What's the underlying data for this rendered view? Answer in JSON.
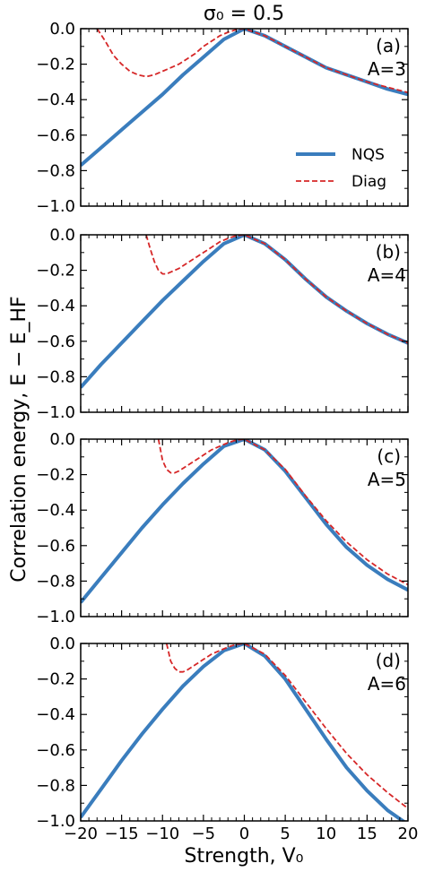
{
  "figure": {
    "title": "σ₀ = 0.5",
    "xlabel": "Strength, V₀",
    "ylabel": "Correlation energy, E − E_HF"
  },
  "chart_data": [
    {
      "type": "line",
      "panel": "(a)",
      "annotation": "A=3",
      "xlim": [
        -20,
        20
      ],
      "ylim": [
        -1.0,
        0.0
      ],
      "series": [
        {
          "name": "NQS",
          "x": [
            -20,
            -17.5,
            -15,
            -12.5,
            -10,
            -7.5,
            -5,
            -2.5,
            0,
            2.5,
            5,
            7.5,
            10,
            12.5,
            15,
            17.5,
            20
          ],
          "values": [
            -0.77,
            -0.67,
            -0.57,
            -0.47,
            -0.37,
            -0.26,
            -0.16,
            -0.06,
            0.0,
            -0.04,
            -0.1,
            -0.16,
            -0.22,
            -0.26,
            -0.3,
            -0.34,
            -0.37
          ]
        },
        {
          "name": "Diag",
          "x": [
            -18,
            -17,
            -16,
            -15,
            -14,
            -13,
            -12,
            -11,
            -10,
            -9,
            -8,
            -7,
            -6,
            -5,
            -4,
            -3,
            -2,
            -1,
            0,
            2.5,
            5,
            7.5,
            10,
            12.5,
            15,
            17.5,
            20
          ],
          "values": [
            0.0,
            -0.07,
            -0.15,
            -0.2,
            -0.24,
            -0.26,
            -0.27,
            -0.26,
            -0.24,
            -0.22,
            -0.2,
            -0.17,
            -0.14,
            -0.1,
            -0.07,
            -0.04,
            -0.02,
            -0.005,
            0.0,
            -0.04,
            -0.1,
            -0.16,
            -0.22,
            -0.26,
            -0.3,
            -0.33,
            -0.36
          ]
        }
      ]
    },
    {
      "type": "line",
      "panel": "(b)",
      "annotation": "A=4",
      "xlim": [
        -20,
        20
      ],
      "ylim": [
        -1.0,
        0.0
      ],
      "series": [
        {
          "name": "NQS",
          "x": [
            -20,
            -17.5,
            -15,
            -12.5,
            -10,
            -7.5,
            -5,
            -2.5,
            0,
            2.5,
            5,
            7.5,
            10,
            12.5,
            15,
            17.5,
            20
          ],
          "values": [
            -0.86,
            -0.73,
            -0.61,
            -0.49,
            -0.37,
            -0.26,
            -0.15,
            -0.05,
            0.0,
            -0.05,
            -0.14,
            -0.25,
            -0.35,
            -0.43,
            -0.5,
            -0.56,
            -0.61
          ]
        },
        {
          "name": "Diag",
          "x": [
            -12,
            -11.5,
            -11,
            -10.5,
            -10,
            -9.5,
            -9,
            -8.5,
            -8,
            -7,
            -6,
            -5,
            -4,
            -3,
            -2,
            -1,
            0,
            2.5,
            5,
            7.5,
            10,
            12.5,
            15,
            17.5,
            20
          ],
          "values": [
            0.0,
            -0.08,
            -0.15,
            -0.2,
            -0.22,
            -0.22,
            -0.21,
            -0.2,
            -0.19,
            -0.16,
            -0.13,
            -0.1,
            -0.07,
            -0.04,
            -0.02,
            -0.005,
            0.0,
            -0.05,
            -0.14,
            -0.25,
            -0.35,
            -0.43,
            -0.5,
            -0.56,
            -0.61
          ]
        }
      ]
    },
    {
      "type": "line",
      "panel": "(c)",
      "annotation": "A=5",
      "xlim": [
        -20,
        20
      ],
      "ylim": [
        -1.0,
        0.0
      ],
      "series": [
        {
          "name": "NQS",
          "x": [
            -20,
            -17.5,
            -15,
            -12.5,
            -10,
            -7.5,
            -5,
            -2.5,
            0,
            2.5,
            5,
            7.5,
            10,
            12.5,
            15,
            17.5,
            20
          ],
          "values": [
            -0.92,
            -0.78,
            -0.64,
            -0.5,
            -0.37,
            -0.25,
            -0.14,
            -0.04,
            0.0,
            -0.06,
            -0.18,
            -0.33,
            -0.48,
            -0.61,
            -0.71,
            -0.79,
            -0.85
          ]
        },
        {
          "name": "Diag",
          "x": [
            -10.5,
            -10,
            -9.5,
            -9,
            -8.5,
            -8,
            -7,
            -6,
            -5,
            -4,
            -3,
            -2,
            -1,
            0,
            2.5,
            5,
            7.5,
            10,
            12.5,
            15,
            17.5,
            20
          ],
          "values": [
            0.0,
            -0.12,
            -0.17,
            -0.19,
            -0.19,
            -0.18,
            -0.15,
            -0.12,
            -0.09,
            -0.06,
            -0.04,
            -0.02,
            -0.005,
            0.0,
            -0.06,
            -0.17,
            -0.32,
            -0.46,
            -0.58,
            -0.68,
            -0.76,
            -0.82
          ]
        }
      ]
    },
    {
      "type": "line",
      "panel": "(d)",
      "annotation": "A=6",
      "xlim": [
        -20,
        20
      ],
      "ylim": [
        -1.0,
        0.0
      ],
      "series": [
        {
          "name": "NQS",
          "x": [
            -20,
            -17.5,
            -15,
            -12.5,
            -10,
            -7.5,
            -5,
            -2.5,
            0,
            2.5,
            5,
            7.5,
            10,
            12.5,
            15,
            17.5,
            20
          ],
          "values": [
            -0.98,
            -0.82,
            -0.66,
            -0.51,
            -0.37,
            -0.24,
            -0.13,
            -0.04,
            0.0,
            -0.07,
            -0.2,
            -0.37,
            -0.54,
            -0.7,
            -0.83,
            -0.94,
            -1.02
          ]
        },
        {
          "name": "Diag",
          "x": [
            -9.5,
            -9,
            -8.5,
            -8,
            -7.5,
            -7,
            -6,
            -5,
            -4,
            -3,
            -2,
            -1,
            0,
            2.5,
            5,
            7.5,
            10,
            12.5,
            15,
            17.5,
            20
          ],
          "values": [
            0.0,
            -0.1,
            -0.14,
            -0.16,
            -0.16,
            -0.15,
            -0.12,
            -0.09,
            -0.06,
            -0.04,
            -0.02,
            -0.005,
            0.0,
            -0.06,
            -0.18,
            -0.33,
            -0.48,
            -0.62,
            -0.74,
            -0.84,
            -0.93
          ]
        }
      ]
    }
  ],
  "x_ticks": [
    -20,
    -15,
    -10,
    -5,
    0,
    5,
    10,
    15,
    20
  ],
  "x_tick_labels": [
    "−20",
    "−15",
    "−10",
    "−5",
    "0",
    "5",
    "10",
    "15",
    "20"
  ],
  "y_ticks": [
    0.0,
    -0.2,
    -0.4,
    -0.6,
    -0.8,
    -1.0
  ],
  "y_tick_labels": [
    "0.0",
    "−0.2",
    "−0.4",
    "−0.6",
    "−0.8",
    "−1.0"
  ],
  "legend": {
    "panel_index": 0,
    "placement": "lower-right",
    "entries": [
      {
        "label": "NQS",
        "color": "#3a7dbd",
        "style": "solid"
      },
      {
        "label": "Diag",
        "color": "#d62728",
        "style": "dashed"
      }
    ]
  },
  "colors": {
    "nqs": "#3a7dbd",
    "diag": "#d62728"
  }
}
